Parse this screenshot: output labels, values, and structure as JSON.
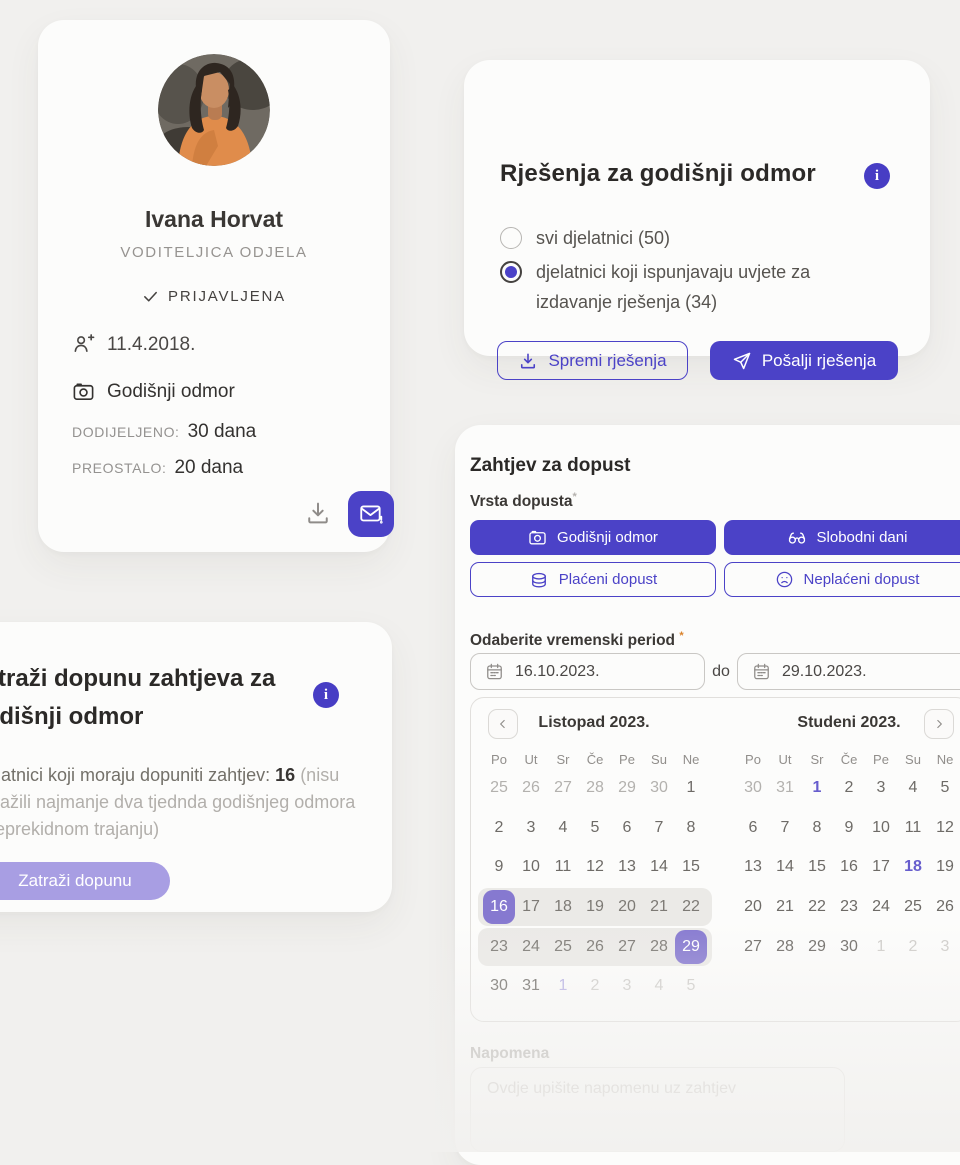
{
  "colors": {
    "primary": "#4b42c7",
    "light_purple": "#a89ee3",
    "selected_day": "#8679d0",
    "holiday": "#675dcd",
    "page_bg": "#f1f0ee",
    "card_bg": "#fcfcfb",
    "required_asterisk": "#d9822b"
  },
  "profile": {
    "name": "Ivana Horvat",
    "role": "VODITELJICA ODJELA",
    "status": "PRIJAVLJENA",
    "hire_date": "11.4.2018.",
    "vacation_type": "Godišnji odmor",
    "allocated_label": "DODIJELJENO:",
    "allocated_value": "30 dana",
    "remaining_label": "PREOSTALO:",
    "remaining_value": "20 dana"
  },
  "decisions_card": {
    "title": "Rješenja za godišnji odmor",
    "options": [
      {
        "label": "svi djelatnici (50)",
        "selected": false
      },
      {
        "label": "djelatnici koji ispunjavaju uvjete za izdavanje rješenja (34)",
        "selected": true
      }
    ],
    "save_button": "Spremi rješenja",
    "send_button": "Pošalji rješenja"
  },
  "supplement_card": {
    "title": "Zatraži dopunu zahtjeva za godišnji odmor",
    "body_prefix": "Djelatnici koji moraju dopuniti zahtjev: ",
    "body_count": "16",
    "body_note": " (nisu zatražili najmanje dva tjednda godišnjeg odmora u neprekidnom trajanju)",
    "button": "Zatraži dopunu"
  },
  "request_card": {
    "title": "Zahtjev za dopust",
    "type_label": "Vrsta dopusta",
    "types": [
      {
        "label": "Godišnji odmor"
      },
      {
        "label": "Slobodni dani"
      },
      {
        "label": "Plaćeni dopust"
      },
      {
        "label": "Neplaćeni dopust"
      }
    ],
    "period_label": "Odaberite vremenski period",
    "date_from": "16.10.2023.",
    "to_word": "do",
    "date_to": "29.10.2023.",
    "note_label": "Napomena",
    "note_placeholder": "Ovdje upišite napomenu uz zahtjev"
  },
  "calendar": {
    "weekdays": [
      "Po",
      "Ut",
      "Sr",
      "Če",
      "Pe",
      "Su",
      "Ne"
    ],
    "selected_range": {
      "from": "16.10.2023.",
      "to": "29.10.2023."
    },
    "months": [
      {
        "name": "Listopad 2023.",
        "days": [
          {
            "d": 25,
            "s": "out"
          },
          {
            "d": 26,
            "s": "out"
          },
          {
            "d": 27,
            "s": "out"
          },
          {
            "d": 28,
            "s": "out"
          },
          {
            "d": 29,
            "s": "out"
          },
          {
            "d": 30,
            "s": "out"
          },
          {
            "d": 1,
            "s": "norm"
          },
          {
            "d": 2,
            "s": "norm"
          },
          {
            "d": 3,
            "s": "norm"
          },
          {
            "d": 4,
            "s": "norm"
          },
          {
            "d": 5,
            "s": "norm"
          },
          {
            "d": 6,
            "s": "norm"
          },
          {
            "d": 7,
            "s": "norm"
          },
          {
            "d": 8,
            "s": "norm"
          },
          {
            "d": 9,
            "s": "norm"
          },
          {
            "d": 10,
            "s": "norm"
          },
          {
            "d": 11,
            "s": "norm"
          },
          {
            "d": 12,
            "s": "norm"
          },
          {
            "d": 13,
            "s": "norm"
          },
          {
            "d": 14,
            "s": "norm"
          },
          {
            "d": 15,
            "s": "norm"
          },
          {
            "d": 16,
            "s": "sel"
          },
          {
            "d": 17,
            "s": "range"
          },
          {
            "d": 18,
            "s": "range"
          },
          {
            "d": 19,
            "s": "range"
          },
          {
            "d": 20,
            "s": "range"
          },
          {
            "d": 21,
            "s": "range"
          },
          {
            "d": 22,
            "s": "range"
          },
          {
            "d": 23,
            "s": "range"
          },
          {
            "d": 24,
            "s": "range"
          },
          {
            "d": 25,
            "s": "range"
          },
          {
            "d": 26,
            "s": "range"
          },
          {
            "d": 27,
            "s": "range"
          },
          {
            "d": 28,
            "s": "range"
          },
          {
            "d": 29,
            "s": "sel"
          },
          {
            "d": 30,
            "s": "norm"
          },
          {
            "d": 31,
            "s": "norm"
          },
          {
            "d": 1,
            "s": "fhol"
          },
          {
            "d": 2,
            "s": "faint"
          },
          {
            "d": 3,
            "s": "faint"
          },
          {
            "d": 4,
            "s": "faint"
          },
          {
            "d": 5,
            "s": "faint"
          }
        ]
      },
      {
        "name": "Studeni 2023.",
        "days": [
          {
            "d": 30,
            "s": "out"
          },
          {
            "d": 31,
            "s": "out"
          },
          {
            "d": 1,
            "s": "hol"
          },
          {
            "d": 2,
            "s": "norm"
          },
          {
            "d": 3,
            "s": "norm"
          },
          {
            "d": 4,
            "s": "norm"
          },
          {
            "d": 5,
            "s": "norm"
          },
          {
            "d": 6,
            "s": "norm"
          },
          {
            "d": 7,
            "s": "norm"
          },
          {
            "d": 8,
            "s": "norm"
          },
          {
            "d": 9,
            "s": "norm"
          },
          {
            "d": 10,
            "s": "norm"
          },
          {
            "d": 11,
            "s": "norm"
          },
          {
            "d": 12,
            "s": "norm"
          },
          {
            "d": 13,
            "s": "norm"
          },
          {
            "d": 14,
            "s": "norm"
          },
          {
            "d": 15,
            "s": "norm"
          },
          {
            "d": 16,
            "s": "norm"
          },
          {
            "d": 17,
            "s": "norm"
          },
          {
            "d": 18,
            "s": "hol"
          },
          {
            "d": 19,
            "s": "norm"
          },
          {
            "d": 20,
            "s": "norm"
          },
          {
            "d": 21,
            "s": "norm"
          },
          {
            "d": 22,
            "s": "norm"
          },
          {
            "d": 23,
            "s": "norm"
          },
          {
            "d": 24,
            "s": "norm"
          },
          {
            "d": 25,
            "s": "norm"
          },
          {
            "d": 26,
            "s": "norm"
          },
          {
            "d": 27,
            "s": "norm"
          },
          {
            "d": 28,
            "s": "norm"
          },
          {
            "d": 29,
            "s": "norm"
          },
          {
            "d": 30,
            "s": "norm"
          },
          {
            "d": 1,
            "s": "faint"
          },
          {
            "d": 2,
            "s": "faint"
          },
          {
            "d": 3,
            "s": "faint"
          }
        ]
      }
    ]
  }
}
